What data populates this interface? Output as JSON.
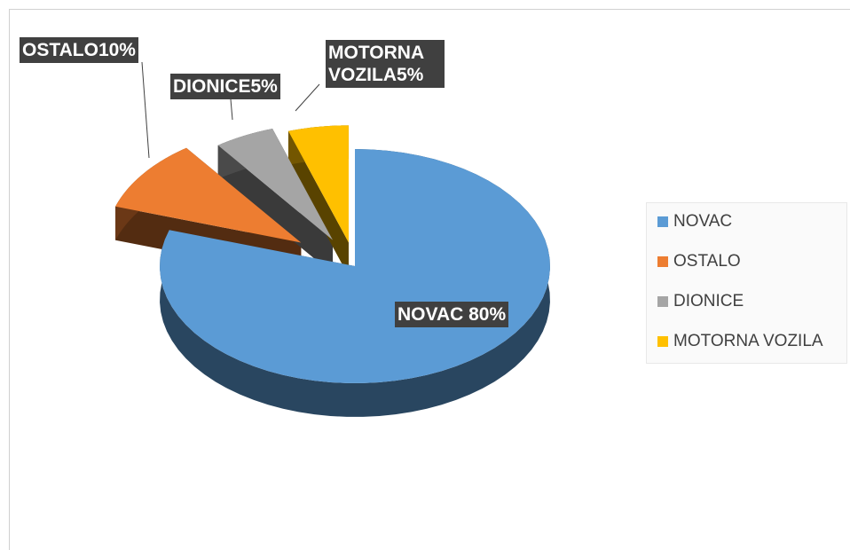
{
  "chart_data": {
    "type": "pie",
    "categories": [
      "NOVAC",
      "OSTALO",
      "DIONICE",
      "MOTORNA VOZILA"
    ],
    "values": [
      80,
      10,
      5,
      5
    ],
    "value_labels": [
      "NOVAC 80%",
      "OSTALO10%",
      "DIONICE5%",
      "MOTORNA VOZILA5%"
    ],
    "colors": [
      "#5b9bd5",
      "#ed7d31",
      "#a5a5a5",
      "#ffc000"
    ],
    "legend": "right"
  }
}
